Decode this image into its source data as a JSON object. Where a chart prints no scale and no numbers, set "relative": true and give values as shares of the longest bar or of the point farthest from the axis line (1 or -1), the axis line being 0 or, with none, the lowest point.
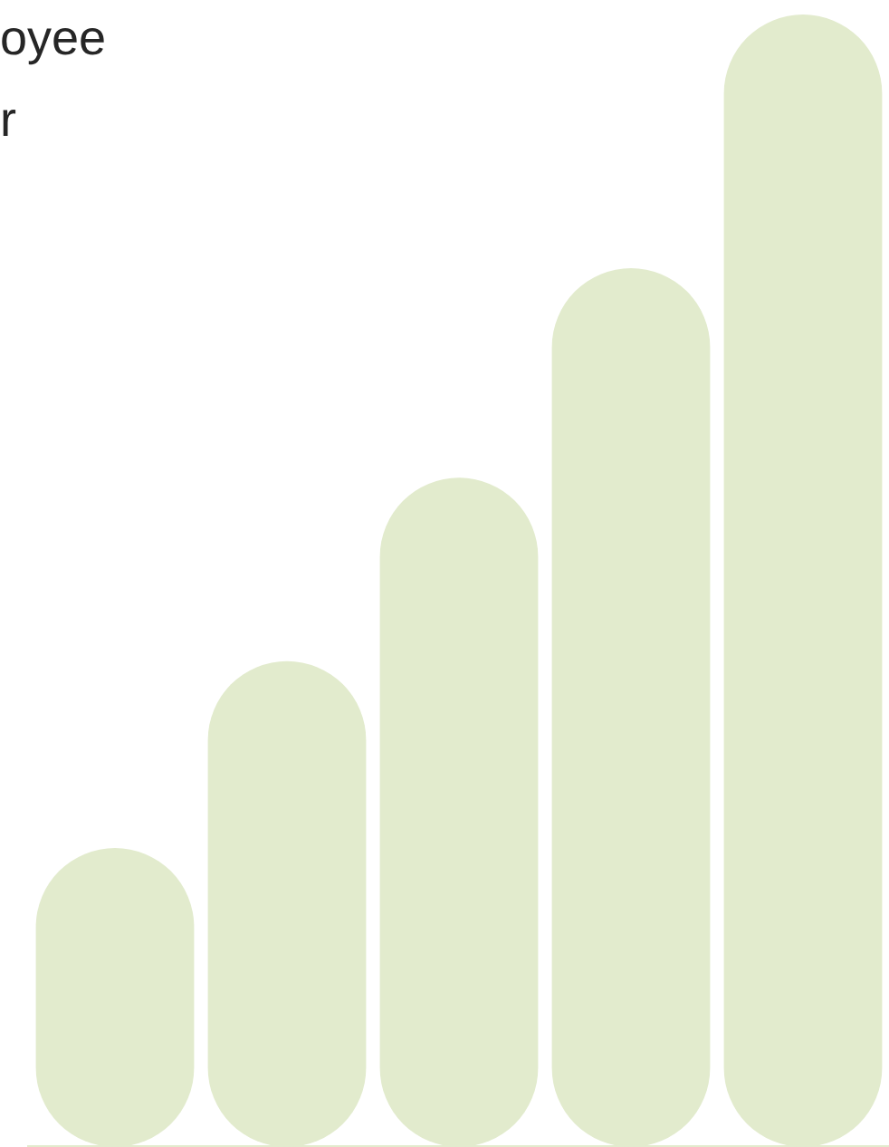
{
  "chart_data": {
    "type": "bar",
    "relative": true,
    "categories": [
      null,
      null,
      null,
      null,
      null
    ],
    "values": [
      0.264,
      0.429,
      0.591,
      0.776,
      1
    ],
    "color": "#e2ebcd",
    "tick_labels": false,
    "grid": false,
    "legend": false,
    "annotations": [
      "oyee",
      "r"
    ]
  }
}
